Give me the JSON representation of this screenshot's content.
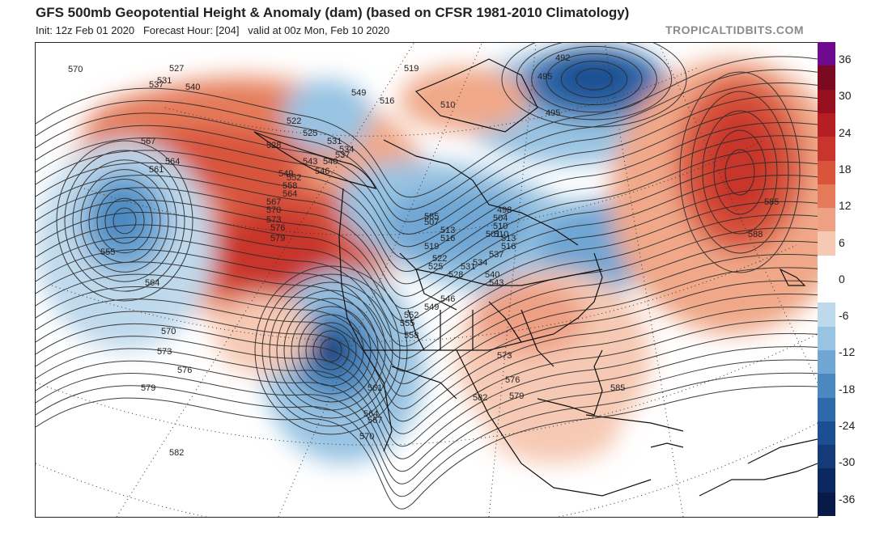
{
  "header": {
    "title": "GFS 500mb Geopotential Height & Anomaly (dam) (based on CFSR 1981-2010 Climatology)",
    "subtitle": "Init: 12z Feb 01 2020   Forecast Hour: [204]   valid at 00z Mon, Feb 10 2020",
    "credit": "TROPICALTIDBITS.COM"
  },
  "colorbar": {
    "labels": [
      "36",
      "30",
      "24",
      "18",
      "12",
      "6",
      "0",
      "-6",
      "-12",
      "-18",
      "-24",
      "-30",
      "-36"
    ],
    "colors": [
      "#6e0a8e",
      "#7a0a20",
      "#96101f",
      "#b41e24",
      "#c8352c",
      "#d8553c",
      "#e47a5a",
      "#eea085",
      "#f6c9b4",
      "#ffffff",
      "#ffffff",
      "#bfd9ec",
      "#98c3e2",
      "#6fa6d3",
      "#4b88c0",
      "#2e6aab",
      "#1c4f92",
      "#143a78",
      "#0c2860",
      "#071a48"
    ]
  },
  "map": {
    "contour_labels": [
      "570",
      "527",
      "531",
      "537",
      "540",
      "519",
      "516",
      "549",
      "510",
      "492",
      "495",
      "495",
      "522",
      "525",
      "528",
      "531",
      "534",
      "537",
      "543",
      "540",
      "546",
      "549",
      "552",
      "558",
      "564",
      "567",
      "570",
      "573",
      "576",
      "579",
      "567",
      "564",
      "561",
      "555",
      "564",
      "570",
      "573",
      "576",
      "579",
      "582",
      "582",
      "585",
      "588",
      "585",
      "507",
      "513",
      "516",
      "519",
      "522",
      "525",
      "528",
      "531",
      "534",
      "537",
      "540",
      "543",
      "546",
      "549",
      "552",
      "555",
      "558",
      "561",
      "564",
      "567",
      "570",
      "573",
      "576",
      "579",
      "582",
      "585",
      "498",
      "504",
      "510",
      "501",
      "510",
      "513",
      "516"
    ]
  }
}
